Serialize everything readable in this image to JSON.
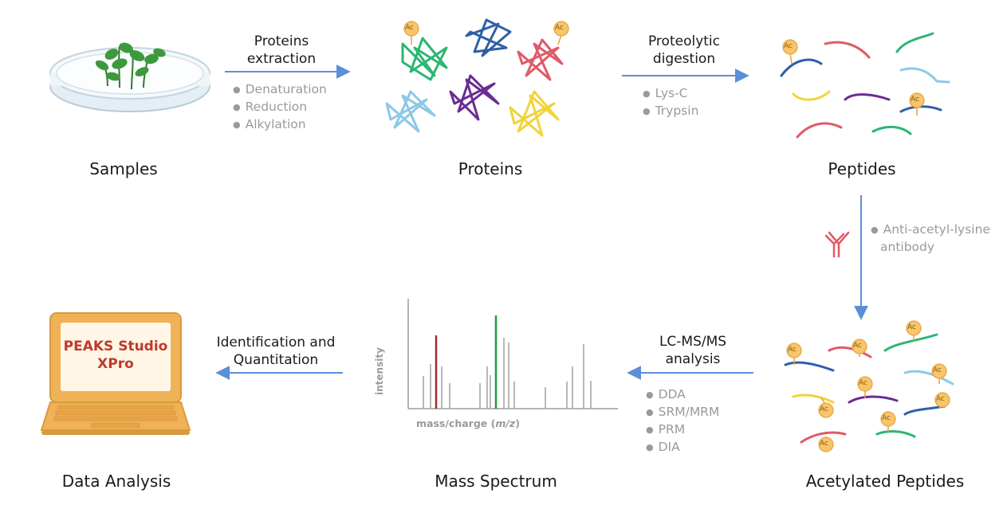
{
  "stages": {
    "samples": "Samples",
    "proteins": "Proteins",
    "peptides": "Peptides",
    "acetylated_peptides": "Acetylated Peptides",
    "mass_spectrum": "Mass Spectrum",
    "data_analysis": "Data Analysis"
  },
  "steps": {
    "extraction": {
      "title_line1": "Proteins",
      "title_line2": "extraction",
      "bullets": [
        "Denaturation",
        "Reduction",
        "Alkylation"
      ]
    },
    "digestion": {
      "title_line1": "Proteolytic",
      "title_line2": "digestion",
      "bullets": [
        "Lys-C",
        "Trypsin"
      ]
    },
    "enrichment": {
      "line1": "Anti-acetyl-lysine",
      "line2": "antibody"
    },
    "lcms": {
      "title_line1": "LC-MS/MS",
      "title_line2": "analysis",
      "bullets": [
        "DDA",
        "SRM/MRM",
        "PRM",
        "DIA"
      ]
    },
    "identification": {
      "title_line1": "Identification and",
      "title_line2": "Quantitation"
    }
  },
  "software": {
    "line1": "PEAKS Studio",
    "line2": "XPro"
  },
  "spectrum": {
    "ylabel": "intensity",
    "xlabel_prefix": "mass/charge (",
    "xlabel_var": "m/z",
    "xlabel_suffix": ")"
  },
  "tag_label": "Ac",
  "colors": {
    "arrow": "#5b8fd8",
    "green": "#2bb673",
    "blue": "#2f5fa7",
    "red": "#e05a67",
    "purple": "#6a2c91",
    "yellow": "#f2d33a",
    "lightblue": "#8cc8e8",
    "tag": "#f7c56a",
    "spectrum_red": "#a52a2a",
    "spectrum_green": "#1e9e3a",
    "laptop": "#f0b257",
    "laptop_dark": "#d89a3e"
  }
}
